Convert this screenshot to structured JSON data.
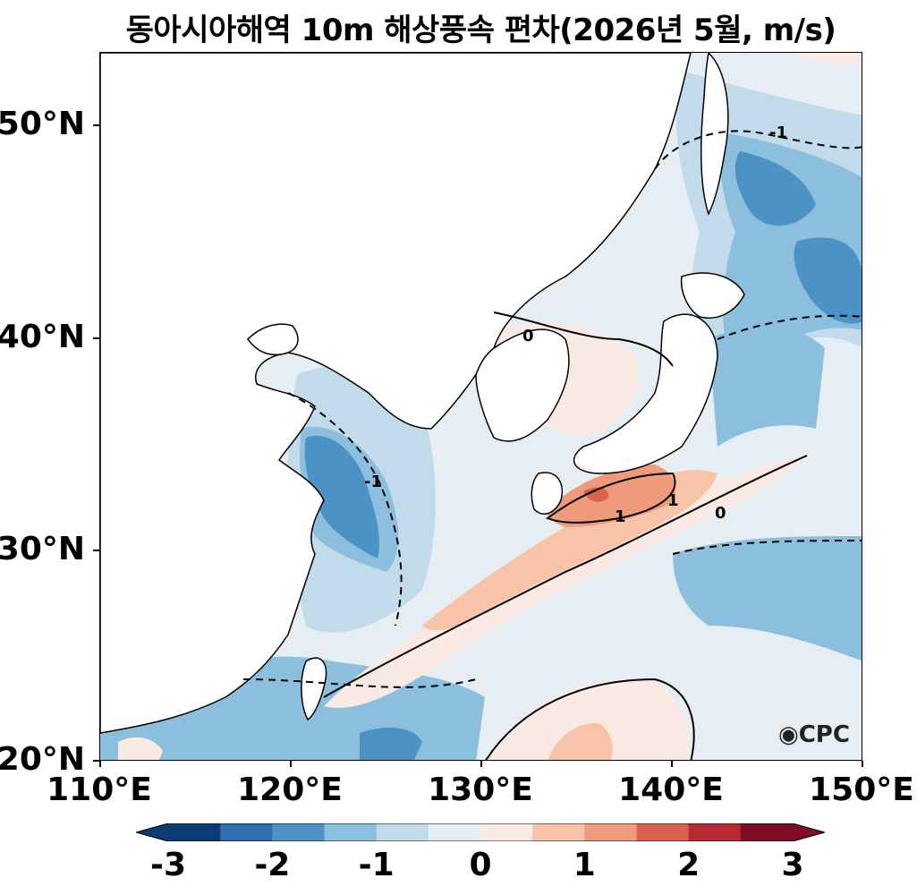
{
  "title": "동아시아해역 10m 해상풍속 편차(2026년 5월, m/s)",
  "logo_text": "CPC",
  "axes": {
    "lat_labels": [
      "50°N",
      "40°N",
      "30°N",
      "20°N"
    ],
    "lon_labels": [
      "110°E",
      "120°E",
      "130°E",
      "140°E",
      "150°E"
    ]
  },
  "contour_labels": [
    "0",
    "-1",
    "1",
    "-1",
    "0",
    "1"
  ],
  "colorbar": {
    "ticks": [
      "-3",
      "-2",
      "-1",
      "0",
      "1",
      "2",
      "3"
    ],
    "colors": [
      "#0d3b73",
      "#2f6fb0",
      "#4b93c4",
      "#8cbedd",
      "#c2dbea",
      "#e6eef4",
      "#faeae3",
      "#f8c4a9",
      "#ef9b7b",
      "#d9624f",
      "#b72a34",
      "#7d0c25"
    ]
  },
  "palette": {
    "land": "#ffffff",
    "sea_base": "#e6eef4",
    "neg_light": "#c2dbea",
    "neg_mid": "#8cbedd",
    "neg_strong": "#4b93c4",
    "neg_deep": "#2f6fb0",
    "pos_light": "#faeae3",
    "pos_mid": "#f8c4a9",
    "pos_strong": "#ef9b7b",
    "pos_deep": "#d9624f"
  }
}
